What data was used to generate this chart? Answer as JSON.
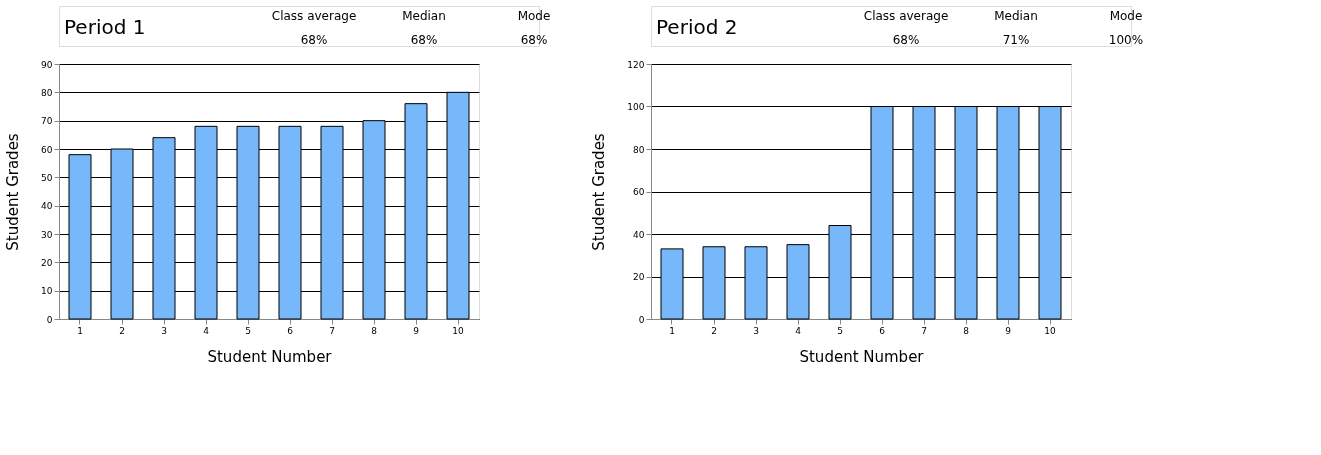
{
  "chart_data": [
    {
      "type": "bar",
      "title": "Period 1",
      "annotations": [
        "Class average",
        "68%",
        "Median",
        "68%",
        "Mode",
        "68%"
      ],
      "xlabel": "Student Number",
      "ylabel": "Student Grades",
      "categories": [
        "1",
        "2",
        "3",
        "4",
        "5",
        "6",
        "7",
        "8",
        "9",
        "10"
      ],
      "values": [
        58,
        60,
        64,
        68,
        68,
        68,
        68,
        70,
        76,
        80
      ],
      "color": "#77b8fb",
      "ylim": [
        0,
        90
      ],
      "yticks": [
        0,
        10,
        20,
        30,
        40,
        50,
        60,
        70,
        80,
        90
      ],
      "grid": "y"
    },
    {
      "type": "bar",
      "title": "Period 2",
      "annotations": [
        "Class average",
        "68%",
        "Median",
        "71%",
        "Mode",
        "100%"
      ],
      "xlabel": "Student Number",
      "ylabel": "Student Grades",
      "categories": [
        "1",
        "2",
        "3",
        "4",
        "5",
        "6",
        "7",
        "8",
        "9",
        "10"
      ],
      "values": [
        33,
        34,
        34,
        35,
        44,
        100,
        100,
        100,
        100,
        100
      ],
      "color": "#77b8fb",
      "ylim": [
        0,
        120
      ],
      "yticks": [
        0,
        20,
        40,
        60,
        80,
        100,
        120
      ],
      "grid": "y"
    }
  ]
}
